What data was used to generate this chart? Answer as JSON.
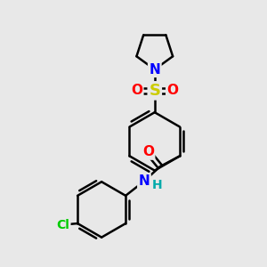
{
  "background_color": "#e8e8e8",
  "bond_color": "#000000",
  "bond_width": 1.8,
  "atom_colors": {
    "N": "#0000ff",
    "O": "#ff0000",
    "S": "#cccc00",
    "Cl": "#00cc00",
    "C": "#000000",
    "H": "#00aaaa"
  },
  "font_size_atom": 11,
  "font_size_H": 9
}
